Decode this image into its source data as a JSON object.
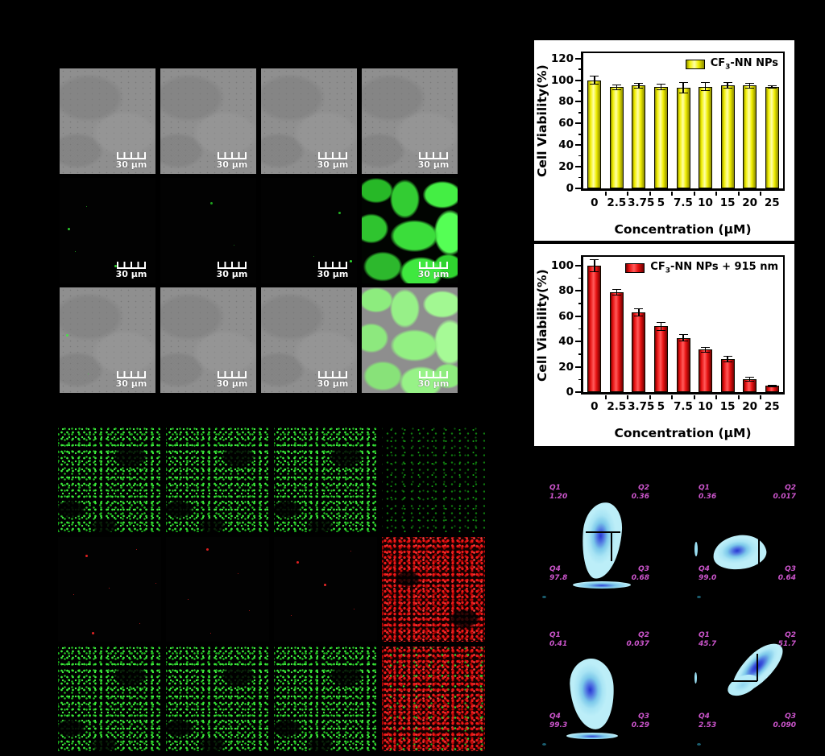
{
  "microscopy": {
    "scale_label": "30 μm"
  },
  "chart_data": [
    {
      "type": "bar",
      "title": "",
      "categories": [
        "0",
        "2.5",
        "3.75",
        "5",
        "7.5",
        "10",
        "15",
        "20",
        "25"
      ],
      "values": [
        100,
        93.5,
        95,
        93.5,
        93,
        94,
        95,
        95,
        93.5
      ],
      "errors": [
        4,
        2.5,
        2.5,
        3,
        5,
        4,
        3,
        2.5,
        1.5
      ],
      "legend_pre": "CF",
      "legend_sub": "3",
      "legend_post": "-NN NPs",
      "xlabel": "Concentration (μM)",
      "ylabel": "Cell Viability(%)",
      "ylim": [
        0,
        125
      ],
      "yticks": [
        0,
        20,
        40,
        60,
        80,
        100,
        120
      ],
      "yminor": 10,
      "grid": false,
      "legend_position": "top-right",
      "bar_main": "#f0ee00",
      "bar_light": "#ffffa8",
      "bar_dark": "#8a8a00"
    },
    {
      "type": "bar",
      "title": "",
      "categories": [
        "0",
        "2.5",
        "3.75",
        "5",
        "7.5",
        "10",
        "15",
        "20",
        "25"
      ],
      "values": [
        100,
        79,
        63,
        52,
        43,
        33.5,
        26,
        10,
        5
      ],
      "errors": [
        5,
        2.5,
        3,
        3.5,
        3,
        2,
        2.5,
        2,
        1
      ],
      "legend_pre": "CF",
      "legend_sub": "3",
      "legend_post": "-NN NPs + 915 nm",
      "xlabel": "Concentration (μM)",
      "ylabel": "Cell Viability(%)",
      "ylim": [
        0,
        107
      ],
      "yticks": [
        0,
        20,
        40,
        60,
        80,
        100
      ],
      "yminor": 10,
      "grid": false,
      "legend_position": "top-right",
      "bar_main": "#e81212",
      "bar_light": "#ff5a5a",
      "bar_dark": "#6e0000"
    },
    {
      "type": "flow-quadrant-density",
      "label_color": "#cc55cc",
      "panels": [
        {
          "q1": {
            "name": "Q1",
            "value": "1.20"
          },
          "q2": {
            "name": "Q2",
            "value": "0.36"
          },
          "q3": {
            "name": "Q3",
            "value": "0.68"
          },
          "q4": {
            "name": "Q4",
            "value": "97.8"
          }
        },
        {
          "q1": {
            "name": "Q1",
            "value": "0.36"
          },
          "q2": {
            "name": "Q2",
            "value": "0.017"
          },
          "q3": {
            "name": "Q3",
            "value": "0.64"
          },
          "q4": {
            "name": "Q4",
            "value": "99.0"
          }
        },
        {
          "q1": {
            "name": "Q1",
            "value": "0.41"
          },
          "q2": {
            "name": "Q2",
            "value": "0.037"
          },
          "q3": {
            "name": "Q3",
            "value": "0.29"
          },
          "q4": {
            "name": "Q4",
            "value": "99.3"
          }
        },
        {
          "q1": {
            "name": "Q1",
            "value": "45.7"
          },
          "q2": {
            "name": "Q2",
            "value": "51.7"
          },
          "q3": {
            "name": "Q3",
            "value": "0.090"
          },
          "q4": {
            "name": "Q4",
            "value": "2.53"
          }
        }
      ]
    }
  ]
}
